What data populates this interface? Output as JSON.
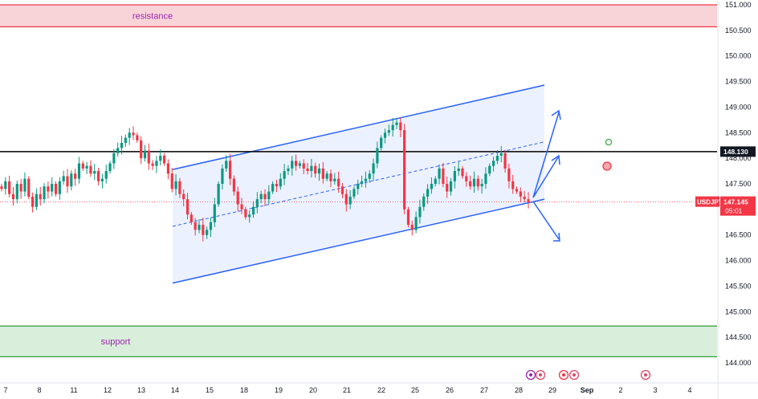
{
  "chart_data": {
    "type": "candlestick",
    "symbol": "USDJPY",
    "ylim": [
      143.8,
      151.1
    ],
    "y_ticks": [
      "151.000",
      "150.500",
      "150.000",
      "149.500",
      "149.000",
      "148.500",
      "148.000",
      "147.500",
      "147.000",
      "146.500",
      "146.000",
      "145.500",
      "145.000",
      "144.500",
      "144.000"
    ],
    "x_ticks": [
      "7",
      "8",
      "11",
      "12",
      "13",
      "14",
      "15",
      "18",
      "19",
      "20",
      "21",
      "22",
      "25",
      "26",
      "27",
      "28",
      "29",
      "Sep",
      "2",
      "3",
      "4"
    ],
    "last_price": "147.145",
    "countdown": "05:01",
    "level_line": {
      "value": 148.13,
      "label": "148.130"
    },
    "resistance": {
      "label": "resistance",
      "low": 150.57,
      "high": 151.0
    },
    "support": {
      "label": "support",
      "low": 144.12,
      "high": 144.72
    },
    "channel": {
      "upper": {
        "from": {
          "x": "14",
          "y": 147.78
        },
        "to": {
          "x": "28.7",
          "y": 149.43
        }
      },
      "lower": {
        "from": {
          "x": "14",
          "y": 145.56
        },
        "to": {
          "x": "28.7",
          "y": 147.2
        }
      },
      "mid": {
        "from": {
          "x": "14",
          "y": 146.67
        },
        "to": {
          "x": "28.7",
          "y": 148.32
        }
      }
    },
    "scenario_arrows": [
      "up",
      "up",
      "down"
    ],
    "markers": [
      {
        "type": "circle",
        "color": "#4caf50",
        "x": "Sep 1.6",
        "y": 148.3
      },
      {
        "type": "circle",
        "color": "#f23645",
        "x": "Sep 1.6",
        "y": 147.87
      }
    ],
    "series": [
      {
        "close": [
          147.4,
          147.55,
          147.3,
          147.2,
          147.5,
          147.35,
          147.6,
          147.25,
          147.05,
          147.3,
          147.2,
          147.45,
          147.35,
          147.5,
          147.3,
          147.55,
          147.65,
          147.45,
          147.7,
          147.6,
          147.9,
          147.8,
          147.85,
          147.7,
          147.75,
          147.55,
          147.6,
          147.75,
          147.9,
          148.1,
          148.2,
          148.3,
          148.4,
          148.5,
          148.45,
          148.35,
          148.0,
          148.15,
          147.9,
          147.85,
          147.95,
          148.05,
          147.9,
          147.7,
          147.4,
          147.55,
          147.3,
          147.2,
          146.9,
          146.75,
          146.6,
          146.7,
          146.5,
          146.6,
          146.75,
          147.1,
          147.5,
          147.8,
          147.95,
          147.6,
          147.35,
          147.1,
          147.0,
          146.85,
          146.9,
          147.05,
          147.2,
          147.3,
          147.2,
          147.35,
          147.5,
          147.45,
          147.6,
          147.75,
          147.8,
          147.95,
          147.85,
          147.9,
          147.8,
          147.75,
          147.85,
          147.7,
          147.8,
          147.6,
          147.7,
          147.55,
          147.6,
          147.45,
          147.3,
          147.1,
          147.25,
          147.4,
          147.5,
          147.55,
          147.6,
          147.7,
          147.9,
          148.2,
          148.4,
          148.5,
          148.55,
          148.65,
          148.7,
          148.55,
          147.0,
          146.7,
          146.6,
          146.85,
          147.05,
          147.25,
          147.4,
          147.5,
          147.6,
          147.8,
          147.5,
          147.35,
          147.55,
          147.75,
          147.8,
          147.65,
          147.55,
          147.45,
          147.6,
          147.45,
          147.5,
          147.7,
          147.85,
          147.95,
          148.05,
          148.1,
          147.8,
          147.55,
          147.4,
          147.35,
          147.25,
          147.2,
          147.145
        ]
      }
    ]
  }
}
